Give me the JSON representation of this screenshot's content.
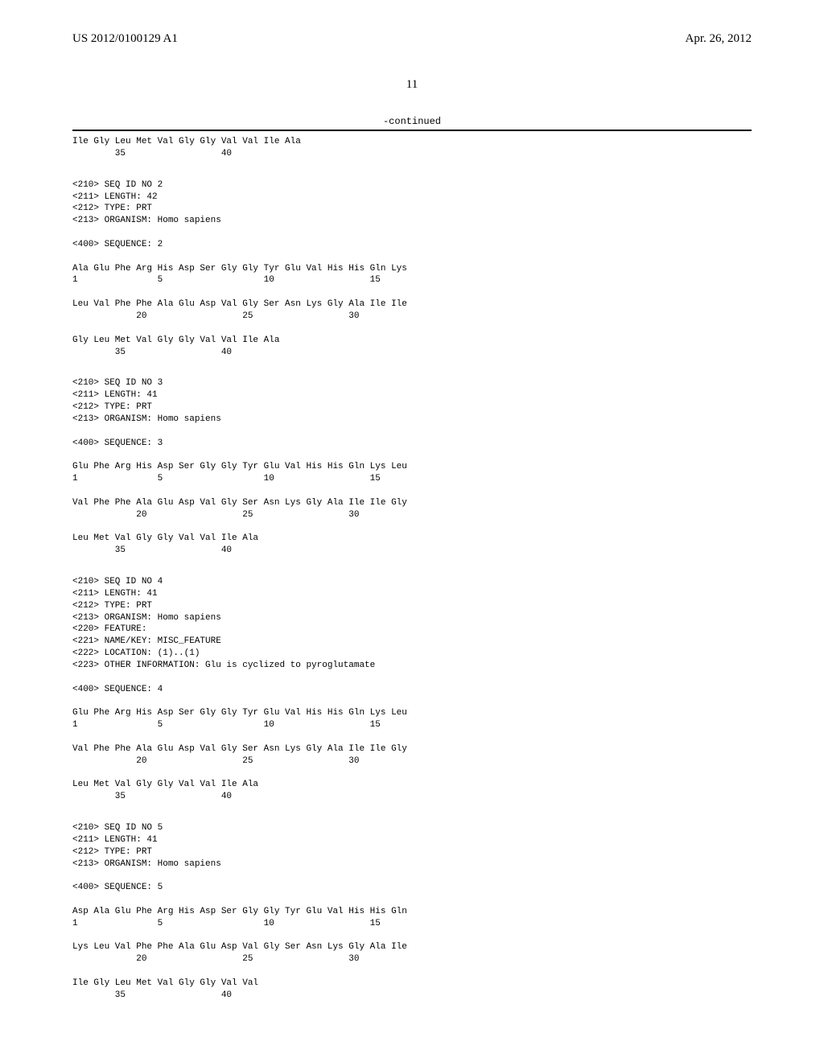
{
  "header": {
    "left": "US 2012/0100129 A1",
    "right": "Apr. 26, 2012"
  },
  "page_number": "11",
  "continued_label": "-continued",
  "seq_blocks": [
    {
      "lines": [
        "Ile Gly Leu Met Val Gly Gly Val Val Ile Ala",
        "        35                  40"
      ]
    },
    {
      "lines": [
        "<210> SEQ ID NO 2",
        "<211> LENGTH: 42",
        "<212> TYPE: PRT",
        "<213> ORGANISM: Homo sapiens",
        "",
        "<400> SEQUENCE: 2",
        "",
        "Ala Glu Phe Arg His Asp Ser Gly Gly Tyr Glu Val His His Gln Lys",
        "1               5                   10                  15",
        "",
        "Leu Val Phe Phe Ala Glu Asp Val Gly Ser Asn Lys Gly Ala Ile Ile",
        "            20                  25                  30",
        "",
        "Gly Leu Met Val Gly Gly Val Val Ile Ala",
        "        35                  40"
      ]
    },
    {
      "lines": [
        "<210> SEQ ID NO 3",
        "<211> LENGTH: 41",
        "<212> TYPE: PRT",
        "<213> ORGANISM: Homo sapiens",
        "",
        "<400> SEQUENCE: 3",
        "",
        "Glu Phe Arg His Asp Ser Gly Gly Tyr Glu Val His His Gln Lys Leu",
        "1               5                   10                  15",
        "",
        "Val Phe Phe Ala Glu Asp Val Gly Ser Asn Lys Gly Ala Ile Ile Gly",
        "            20                  25                  30",
        "",
        "Leu Met Val Gly Gly Val Val Ile Ala",
        "        35                  40"
      ]
    },
    {
      "lines": [
        "<210> SEQ ID NO 4",
        "<211> LENGTH: 41",
        "<212> TYPE: PRT",
        "<213> ORGANISM: Homo sapiens",
        "<220> FEATURE:",
        "<221> NAME/KEY: MISC_FEATURE",
        "<222> LOCATION: (1)..(1)",
        "<223> OTHER INFORMATION: Glu is cyclized to pyroglutamate",
        "",
        "<400> SEQUENCE: 4",
        "",
        "Glu Phe Arg His Asp Ser Gly Gly Tyr Glu Val His His Gln Lys Leu",
        "1               5                   10                  15",
        "",
        "Val Phe Phe Ala Glu Asp Val Gly Ser Asn Lys Gly Ala Ile Ile Gly",
        "            20                  25                  30",
        "",
        "Leu Met Val Gly Gly Val Val Ile Ala",
        "        35                  40"
      ]
    },
    {
      "lines": [
        "<210> SEQ ID NO 5",
        "<211> LENGTH: 41",
        "<212> TYPE: PRT",
        "<213> ORGANISM: Homo sapiens",
        "",
        "<400> SEQUENCE: 5",
        "",
        "Asp Ala Glu Phe Arg His Asp Ser Gly Gly Tyr Glu Val His His Gln",
        "1               5                   10                  15",
        "",
        "Lys Leu Val Phe Phe Ala Glu Asp Val Gly Ser Asn Lys Gly Ala Ile",
        "            20                  25                  30",
        "",
        "Ile Gly Leu Met Val Gly Gly Val Val",
        "        35                  40"
      ]
    }
  ]
}
